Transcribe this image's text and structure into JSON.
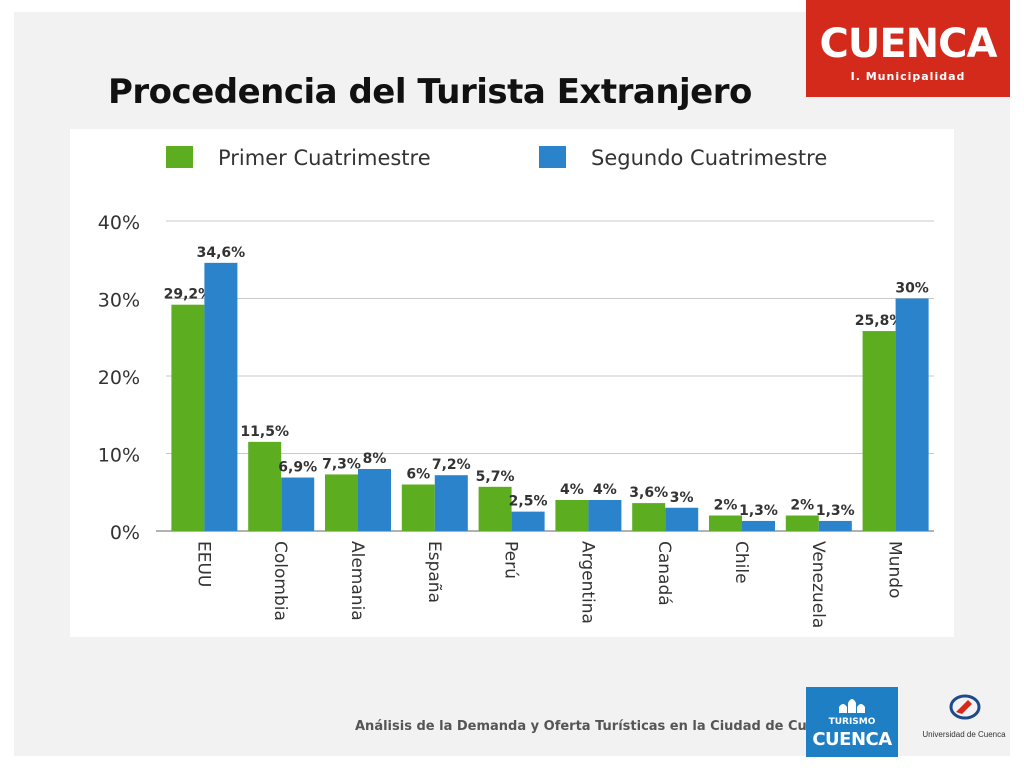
{
  "slide": {
    "title": "Procedencia del Turista Extranjero",
    "footer": "Análisis de la Demanda y Oferta Turísticas en la Ciudad de Cuenca"
  },
  "logos": {
    "top": {
      "word": "CUENCA",
      "sub": "I. Municipalidad",
      "color": "#d42a1c"
    },
    "bottom": {
      "small": "TURISMO",
      "big": "CUENCA",
      "color": "#1f7fc4"
    },
    "university": {
      "name": "Universidad de Cuenca"
    }
  },
  "chart_data": {
    "type": "bar",
    "categories": [
      "EEUU",
      "Colombia",
      "Alemania",
      "España",
      "Perú",
      "Argentina",
      "Canadá",
      "Chile",
      "Venezuela",
      "Mundo"
    ],
    "series": [
      {
        "name": "Primer Cuatrimestre",
        "color": "#5cad1f",
        "values": [
          29.2,
          11.5,
          7.3,
          6,
          5.7,
          4,
          3.6,
          2,
          2,
          25.8
        ],
        "labels": [
          "29,2%",
          "11,5%",
          "7,3%",
          "6%",
          "5,7%",
          "4%",
          "3,6%",
          "2%",
          "2%",
          "25,8%"
        ]
      },
      {
        "name": "Segundo Cuatrimestre",
        "color": "#2b83cc",
        "values": [
          34.6,
          6.9,
          8,
          7.2,
          2.5,
          4,
          3,
          1.3,
          1.3,
          30
        ],
        "labels": [
          "34,6%",
          "6,9%",
          "8%",
          "7,2%",
          "2,5%",
          "4%",
          "3%",
          "1,3%",
          "1,3%",
          "30%"
        ]
      }
    ],
    "ylim": [
      0,
      40
    ],
    "yticks": [
      0,
      10,
      20,
      30,
      40
    ],
    "ytick_labels": [
      "0%",
      "10%",
      "20%",
      "30%",
      "40%"
    ],
    "grid": true,
    "legend": "top"
  }
}
